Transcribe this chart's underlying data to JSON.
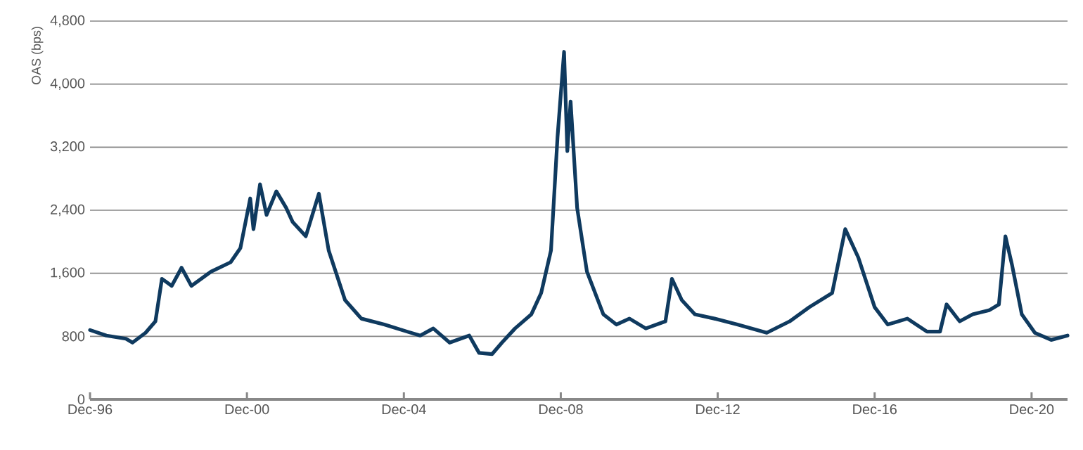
{
  "chart_data": {
    "type": "line",
    "ylabel": "OAS (bps)",
    "x": [
      "1996-12",
      "1997-05",
      "1997-11",
      "1998-01",
      "1998-05",
      "1998-08",
      "1998-10",
      "1999-01",
      "1999-04",
      "1999-07",
      "2000-01",
      "2000-07",
      "2000-10",
      "2001-01",
      "2001-02",
      "2001-04",
      "2001-06",
      "2001-09",
      "2001-12",
      "2002-02",
      "2002-06",
      "2002-10",
      "2003-01",
      "2003-06",
      "2003-11",
      "2004-06",
      "2005-01",
      "2005-05",
      "2005-09",
      "2006-02",
      "2006-08",
      "2006-11",
      "2007-03",
      "2007-06",
      "2007-10",
      "2008-03",
      "2008-06",
      "2008-09",
      "2008-11",
      "2009-01",
      "2009-02",
      "2009-03",
      "2009-05",
      "2009-08",
      "2010-01",
      "2010-05",
      "2010-09",
      "2011-02",
      "2011-08",
      "2011-10",
      "2012-01",
      "2012-05",
      "2012-11",
      "2013-06",
      "2014-03",
      "2014-10",
      "2015-04",
      "2015-11",
      "2016-03",
      "2016-07",
      "2016-12",
      "2017-04",
      "2017-10",
      "2018-04",
      "2018-08",
      "2018-10",
      "2019-02",
      "2019-06",
      "2019-11",
      "2020-02",
      "2020-04",
      "2020-06",
      "2020-09",
      "2021-01",
      "2021-06",
      "2021-11"
    ],
    "series": [
      {
        "color": "#0f3a5f",
        "values": [
          880,
          810,
          770,
          720,
          845,
          990,
          1530,
          1440,
          1670,
          1440,
          1620,
          1740,
          1920,
          2550,
          2160,
          2730,
          2340,
          2640,
          2430,
          2250,
          2070,
          2610,
          1890,
          1260,
          1025,
          950,
          860,
          810,
          900,
          720,
          810,
          590,
          575,
          720,
          900,
          1080,
          1350,
          1890,
          3330,
          4410,
          3150,
          3780,
          2430,
          1620,
          1080,
          950,
          1025,
          900,
          990,
          1530,
          1260,
          1080,
          1025,
          950,
          845,
          990,
          1170,
          1350,
          2160,
          1800,
          1170,
          950,
          1025,
          860,
          860,
          1205,
          990,
          1080,
          1130,
          1205,
          2070,
          1710,
          1080,
          845,
          755,
          810
        ]
      }
    ],
    "xlim": [
      "1996-12",
      "2021-11"
    ],
    "xticks": [
      {
        "value": "1996-12",
        "label": "Dec-96"
      },
      {
        "value": "2000-12",
        "label": "Dec-00"
      },
      {
        "value": "2004-12",
        "label": "Dec-04"
      },
      {
        "value": "2008-12",
        "label": "Dec-08"
      },
      {
        "value": "2012-12",
        "label": "Dec-12"
      },
      {
        "value": "2016-12",
        "label": "Dec-16"
      },
      {
        "value": "2020-12",
        "label": "Dec-20"
      }
    ],
    "ylim": [
      0,
      4800
    ],
    "yticks": [
      0,
      {
        "value": 800,
        "label": "800"
      },
      {
        "value": 1600,
        "label": "1,600"
      },
      {
        "value": 2400,
        "label": "2,400"
      },
      {
        "value": 3200,
        "label": "3,200"
      },
      {
        "value": 4000,
        "label": "4,000"
      },
      {
        "value": 4800,
        "label": "4,800"
      }
    ],
    "grid": "y"
  }
}
